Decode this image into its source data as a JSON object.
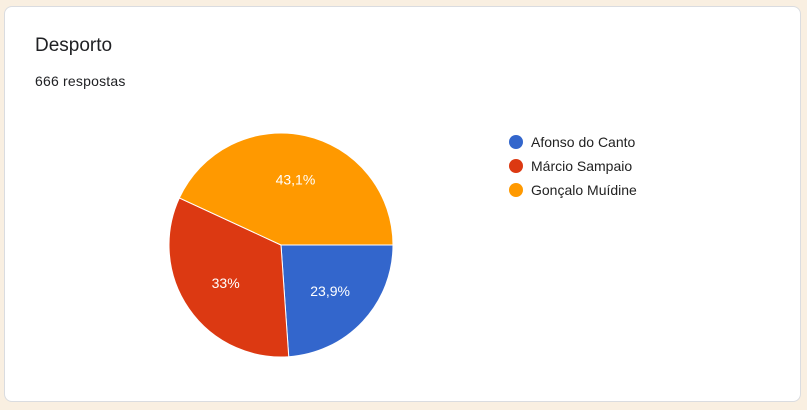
{
  "title": "Desporto",
  "subtitle": "666 respostas",
  "chart_data": {
    "type": "pie",
    "categories": [
      "Afonso do Canto",
      "Márcio Sampaio",
      "Gonçalo Muídine"
    ],
    "values": [
      23.9,
      33,
      43.1
    ],
    "labels": [
      "23,9%",
      "33%",
      "43,1%"
    ],
    "colors": [
      "#3366cc",
      "#dc3912",
      "#ff9900"
    ],
    "legend": "right"
  }
}
